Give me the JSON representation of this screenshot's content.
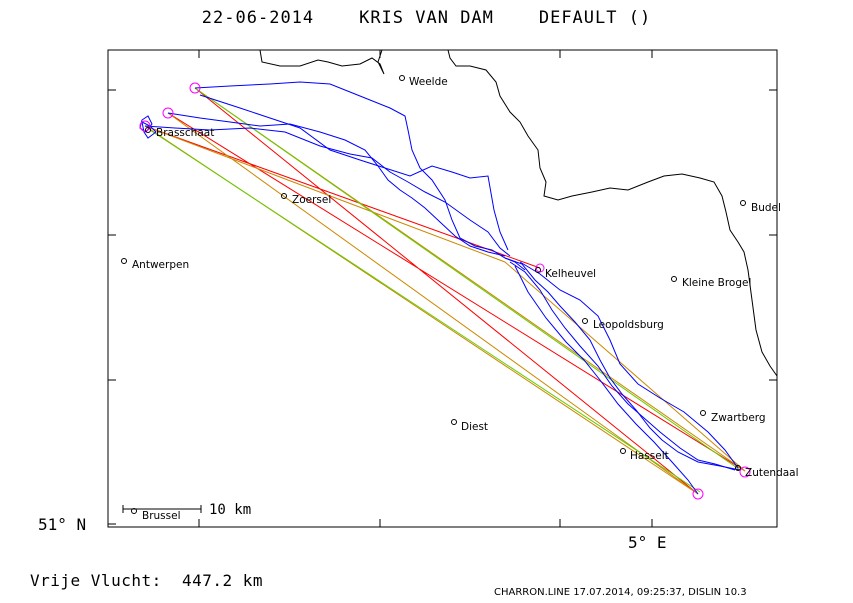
{
  "title": "22-06-2014    KRIS VAN DAM    DEFAULT ()",
  "axes": {
    "lat_label": "51° N",
    "lon_label": "5° E"
  },
  "scale_bar": "10 km",
  "cities": [
    {
      "name": "Weelde"
    },
    {
      "name": "Brasschaat"
    },
    {
      "name": "Zoersel"
    },
    {
      "name": "Antwerpen"
    },
    {
      "name": "Kelheuvel"
    },
    {
      "name": "Leopoldsburg"
    },
    {
      "name": "Kleine Brogel"
    },
    {
      "name": "Budel"
    },
    {
      "name": "Zwartberg"
    },
    {
      "name": "Diest"
    },
    {
      "name": "Hasselt"
    },
    {
      "name": "Zutendaal"
    },
    {
      "name": "Brussel"
    }
  ],
  "free_flight": "Vrije Vlucht:  447.2 km",
  "credit": "CHARRON.LINE 17.07.2014, 09:25:37, DISLIN 10.3",
  "colors": {
    "track": "#0000ff",
    "task_red": "#ff0000",
    "task_green": "#00cc00",
    "task_orange": "#cc8800",
    "turnpoint": "#ff00ff",
    "border": "#000000"
  }
}
